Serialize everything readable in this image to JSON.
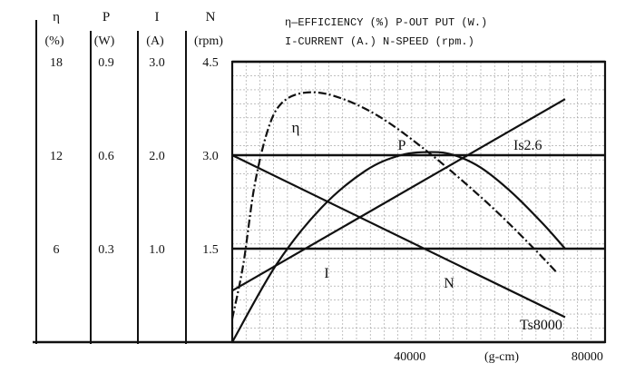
{
  "chart_data": {
    "type": "line",
    "legend_lines": [
      "η—EFFICIENCY (%) P-OUT PUT (W.)",
      "I-CURRENT (A.) N-SPEED (rpm.)"
    ],
    "x_tick_labels": [
      "40000",
      "(g-cm)",
      "80000"
    ],
    "xlim": [
      0,
      84000
    ],
    "axes": [
      {
        "symbol": "η",
        "unit": "(%)",
        "ticks": [
          "18",
          "12",
          "6"
        ],
        "values": [
          18,
          12,
          6
        ],
        "max": 18
      },
      {
        "symbol": "P",
        "unit": "(W)",
        "ticks": [
          "0.9",
          "0.6",
          "0.3"
        ],
        "values": [
          0.9,
          0.6,
          0.3
        ],
        "max": 0.9
      },
      {
        "symbol": "I",
        "unit": "(A)",
        "ticks": [
          "3.0",
          "2.0",
          "1.0"
        ],
        "values": [
          3.0,
          2.0,
          1.0
        ],
        "max": 3.0
      },
      {
        "symbol": "N",
        "unit": "(rpm)",
        "ticks": [
          "4.5",
          "3.0",
          "1.5"
        ],
        "values": [
          4.5,
          3.0,
          1.5
        ],
        "max": 4.5
      }
    ],
    "series": [
      {
        "name": "η",
        "axis": 0,
        "style": "dashdot",
        "x": [
          0,
          2500,
          5000,
          8000,
          11000,
          16000,
          23000,
          33000,
          45000,
          58000,
          68000,
          73000
        ],
        "y": [
          1.5,
          5,
          10,
          13.6,
          15.3,
          16,
          15.8,
          14.5,
          12,
          8.8,
          6,
          4.5
        ]
      },
      {
        "name": "P",
        "axis": 1,
        "style": "solid",
        "x": [
          0,
          10000,
          20000,
          30000,
          38000,
          45000,
          50000,
          56000,
          63000,
          70000,
          75000
        ],
        "y": [
          0,
          0.25,
          0.43,
          0.55,
          0.6,
          0.61,
          0.6,
          0.56,
          0.48,
          0.38,
          0.3
        ]
      },
      {
        "name": "I",
        "axis": 2,
        "style": "solid",
        "x": [
          0,
          75000
        ],
        "y": [
          0.55,
          2.6
        ]
      },
      {
        "name": "N",
        "axis": 3,
        "style": "solid",
        "x": [
          0,
          75000
        ],
        "y": [
          3.0,
          0.4
        ]
      }
    ],
    "annotations": [
      {
        "text": "η",
        "series": "η"
      },
      {
        "text": "P",
        "series": "P"
      },
      {
        "text": "Is2.6",
        "series": "I"
      },
      {
        "text": "I",
        "series": "I"
      },
      {
        "text": "N",
        "series": "N"
      },
      {
        "text": "Ts8000",
        "series": "N"
      }
    ],
    "grid": true
  }
}
